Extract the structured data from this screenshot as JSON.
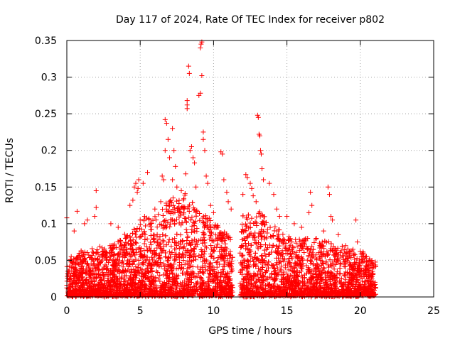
{
  "chart_data": {
    "type": "scatter",
    "title": "Day 117 of 2024, Rate Of TEC Index for receiver p802",
    "xlabel": "GPS time / hours",
    "ylabel": "ROTI / TECUs",
    "xlim": [
      0,
      25
    ],
    "ylim": [
      0,
      0.35
    ],
    "x_ticks": [
      "0",
      "5",
      "10",
      "15",
      "20",
      "25"
    ],
    "y_ticks": [
      "0",
      "0.05",
      "0.1",
      "0.15",
      "0.2",
      "0.25",
      "0.3",
      "0.35"
    ],
    "grid": true,
    "marker": "plus",
    "color": "#ff0000",
    "data_gap": [
      11.3,
      11.8
    ],
    "series": [
      {
        "points": [
          [
            0.0,
            0.108
          ],
          [
            0.1,
            0.03
          ],
          [
            0.3,
            0.055
          ],
          [
            0.5,
            0.09
          ],
          [
            0.7,
            0.117
          ],
          [
            1.2,
            0.1
          ],
          [
            1.4,
            0.105
          ],
          [
            1.9,
            0.11
          ],
          [
            2.0,
            0.145
          ],
          [
            2.0,
            0.122
          ],
          [
            3.0,
            0.1
          ],
          [
            3.5,
            0.095
          ],
          [
            4.0,
            0.08
          ],
          [
            4.3,
            0.125
          ],
          [
            4.5,
            0.132
          ],
          [
            4.6,
            0.15
          ],
          [
            4.7,
            0.155
          ],
          [
            4.8,
            0.143
          ],
          [
            4.9,
            0.16
          ],
          [
            4.85,
            0.148
          ],
          [
            5.0,
            0.105
          ],
          [
            5.2,
            0.155
          ],
          [
            5.5,
            0.17
          ],
          [
            5.3,
            0.11
          ],
          [
            5.7,
            0.1
          ],
          [
            6.0,
            0.12
          ],
          [
            6.4,
            0.13
          ],
          [
            6.5,
            0.165
          ],
          [
            6.6,
            0.16
          ],
          [
            6.7,
            0.2
          ],
          [
            6.8,
            0.237
          ],
          [
            6.7,
            0.242
          ],
          [
            6.9,
            0.215
          ],
          [
            7.0,
            0.19
          ],
          [
            7.2,
            0.23
          ],
          [
            7.3,
            0.2
          ],
          [
            7.4,
            0.178
          ],
          [
            7.2,
            0.16
          ],
          [
            7.5,
            0.15
          ],
          [
            7.8,
            0.145
          ],
          [
            8.0,
            0.12
          ],
          [
            8.1,
            0.168
          ],
          [
            8.2,
            0.257
          ],
          [
            8.2,
            0.262
          ],
          [
            8.2,
            0.268
          ],
          [
            8.3,
            0.315
          ],
          [
            8.35,
            0.305
          ],
          [
            8.4,
            0.2
          ],
          [
            8.5,
            0.205
          ],
          [
            8.6,
            0.19
          ],
          [
            8.7,
            0.183
          ],
          [
            8.8,
            0.15
          ],
          [
            9.0,
            0.275
          ],
          [
            9.1,
            0.278
          ],
          [
            9.1,
            0.34
          ],
          [
            9.15,
            0.345
          ],
          [
            9.2,
            0.348
          ],
          [
            9.2,
            0.302
          ],
          [
            9.3,
            0.225
          ],
          [
            9.3,
            0.215
          ],
          [
            9.4,
            0.2
          ],
          [
            9.5,
            0.165
          ],
          [
            9.6,
            0.155
          ],
          [
            9.8,
            0.125
          ],
          [
            10.0,
            0.115
          ],
          [
            10.5,
            0.198
          ],
          [
            10.6,
            0.195
          ],
          [
            10.7,
            0.16
          ],
          [
            10.9,
            0.143
          ],
          [
            11.0,
            0.13
          ],
          [
            11.2,
            0.12
          ],
          [
            12.0,
            0.14
          ],
          [
            12.2,
            0.167
          ],
          [
            12.3,
            0.163
          ],
          [
            12.5,
            0.155
          ],
          [
            12.6,
            0.148
          ],
          [
            12.7,
            0.138
          ],
          [
            12.9,
            0.13
          ],
          [
            13.0,
            0.248
          ],
          [
            13.05,
            0.245
          ],
          [
            13.1,
            0.222
          ],
          [
            13.15,
            0.22
          ],
          [
            13.2,
            0.2
          ],
          [
            13.25,
            0.195
          ],
          [
            13.3,
            0.175
          ],
          [
            13.4,
            0.16
          ],
          [
            13.8,
            0.155
          ],
          [
            14.1,
            0.14
          ],
          [
            14.3,
            0.12
          ],
          [
            14.5,
            0.11
          ],
          [
            15.0,
            0.11
          ],
          [
            15.5,
            0.1
          ],
          [
            16.0,
            0.095
          ],
          [
            16.5,
            0.115
          ],
          [
            16.6,
            0.143
          ],
          [
            16.7,
            0.125
          ],
          [
            17.0,
            0.08
          ],
          [
            17.5,
            0.09
          ],
          [
            17.8,
            0.15
          ],
          [
            17.9,
            0.14
          ],
          [
            18.0,
            0.11
          ],
          [
            18.1,
            0.105
          ],
          [
            18.5,
            0.085
          ],
          [
            19.0,
            0.07
          ],
          [
            19.5,
            0.065
          ],
          [
            19.7,
            0.105
          ],
          [
            19.8,
            0.075
          ],
          [
            20.0,
            0.062
          ],
          [
            20.4,
            0.055
          ],
          [
            20.6,
            0.05
          ],
          [
            20.8,
            0.04
          ],
          [
            21.0,
            0.02
          ]
        ]
      }
    ]
  }
}
